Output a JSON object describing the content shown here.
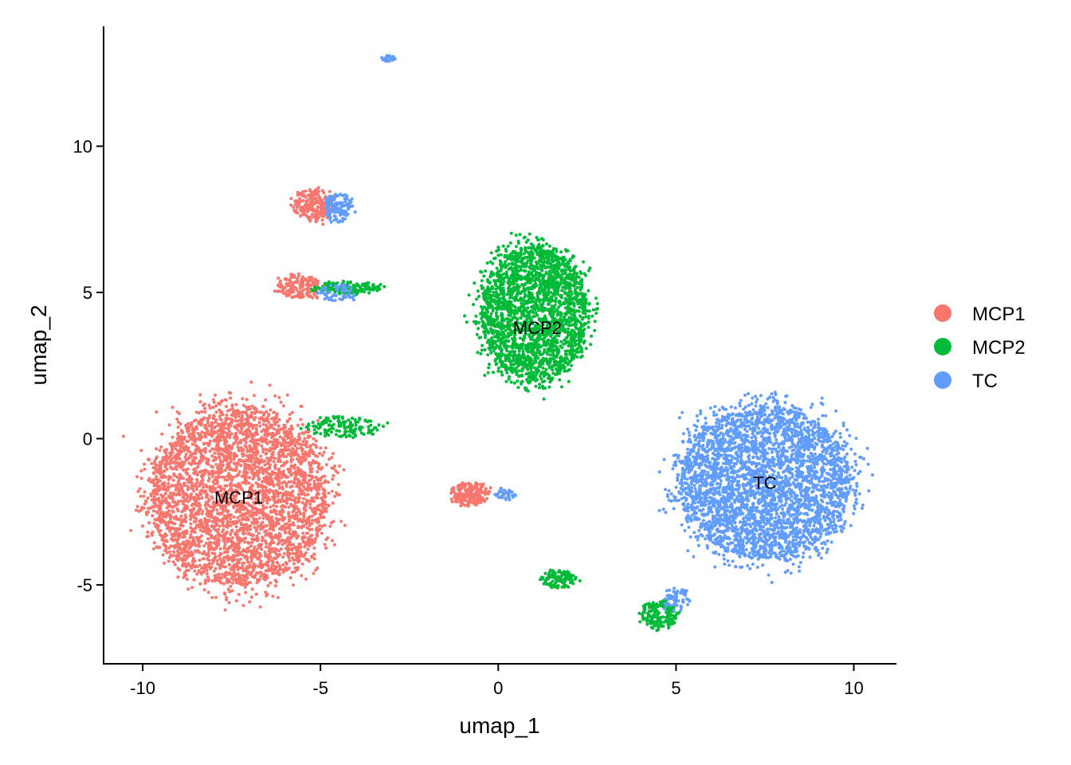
{
  "chart_data": {
    "type": "scatter",
    "title": "",
    "xlabel": "umap_1",
    "ylabel": "umap_2",
    "xlim": [
      -11.1,
      11.2
    ],
    "ylim": [
      -7.7,
      14.1
    ],
    "xticks": [
      -10,
      -5,
      0,
      5,
      10
    ],
    "yticks": [
      -5,
      0,
      5,
      10
    ],
    "xtick_labels": [
      "-10",
      "-5",
      "0",
      "5",
      "10"
    ],
    "ytick_labels": [
      "-5",
      "0",
      "5",
      "10"
    ],
    "grid": false,
    "legend_position": "right",
    "series": [
      {
        "name": "MCP1",
        "color": "#F8766D"
      },
      {
        "name": "MCP2",
        "color": "#00BA38"
      },
      {
        "name": "TC",
        "color": "#619CFF"
      }
    ],
    "cluster_labels": [
      {
        "text": "MCP1",
        "x": -7.3,
        "y": -2.0
      },
      {
        "text": "MCP2",
        "x": 1.1,
        "y": 3.8
      },
      {
        "text": "TC",
        "x": 7.5,
        "y": -1.5
      }
    ],
    "clusters": [
      {
        "series": "MCP1",
        "n": 3600,
        "cx": -7.3,
        "cy": -2.0,
        "rx": 2.5,
        "ry": 3.0,
        "note": "main MCP1 cluster"
      },
      {
        "series": "MCP1",
        "n": 220,
        "cx": -5.2,
        "cy": 8.0,
        "rx": 0.6,
        "ry": 0.5
      },
      {
        "series": "MCP1",
        "n": 160,
        "cx": -5.6,
        "cy": 5.2,
        "rx": 0.6,
        "ry": 0.4
      },
      {
        "series": "MCP1",
        "n": 200,
        "cx": -0.8,
        "cy": -1.9,
        "rx": 0.5,
        "ry": 0.4
      },
      {
        "series": "MCP2",
        "n": 2400,
        "cx": 1.0,
        "cy": 4.3,
        "rx": 1.5,
        "ry": 2.3
      },
      {
        "series": "MCP2",
        "n": 160,
        "cx": -4.2,
        "cy": 5.15,
        "rx": 0.9,
        "ry": 0.2
      },
      {
        "series": "MCP2",
        "n": 140,
        "cx": -4.4,
        "cy": 0.4,
        "rx": 1.0,
        "ry": 0.35
      },
      {
        "series": "MCP2",
        "n": 120,
        "cx": 1.7,
        "cy": -4.8,
        "rx": 0.5,
        "ry": 0.3
      },
      {
        "series": "MCP2",
        "n": 180,
        "cx": 4.5,
        "cy": -6.0,
        "rx": 0.5,
        "ry": 0.5
      },
      {
        "series": "TC",
        "n": 3600,
        "cx": 7.5,
        "cy": -1.5,
        "rx": 2.4,
        "ry": 2.6
      },
      {
        "series": "TC",
        "n": 120,
        "cx": -4.5,
        "cy": 7.9,
        "rx": 0.4,
        "ry": 0.5
      },
      {
        "series": "TC",
        "n": 60,
        "cx": -4.5,
        "cy": 5.0,
        "rx": 0.5,
        "ry": 0.3
      },
      {
        "series": "TC",
        "n": 30,
        "cx": -3.1,
        "cy": 13.0,
        "rx": 0.2,
        "ry": 0.1
      },
      {
        "series": "TC",
        "n": 40,
        "cx": 0.2,
        "cy": -1.9,
        "rx": 0.3,
        "ry": 0.2
      },
      {
        "series": "TC",
        "n": 60,
        "cx": 5.0,
        "cy": -5.5,
        "rx": 0.4,
        "ry": 0.4
      }
    ]
  }
}
